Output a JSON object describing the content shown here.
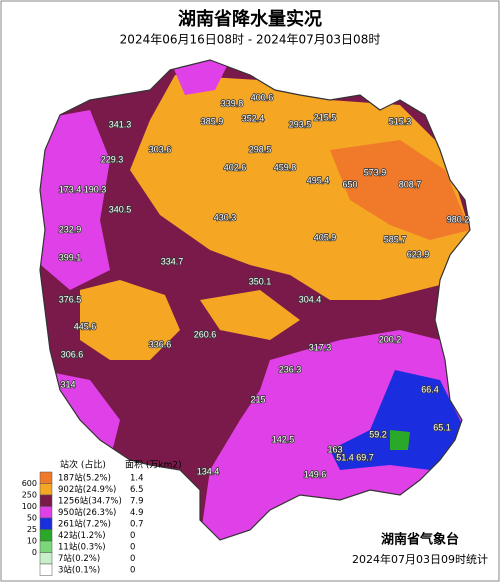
{
  "title": "湖南省降水量实况",
  "subtitle": "2024年06月16日08时 - 2024年07月03日08时",
  "legend": {
    "header_count": "站次 (占比)",
    "header_area": "面积 (万km2)",
    "scale": [
      "600",
      "250",
      "100",
      "50",
      "25",
      "10",
      "0"
    ],
    "items": [
      {
        "color": "#f07a2a",
        "label": "187站(5.2%)",
        "area": 1.4
      },
      {
        "color": "#f5a623",
        "label": "902站(24.9%)",
        "area": 6.5
      },
      {
        "color": "#7a1a4a",
        "label": "1256站(34.7%)",
        "area": 7.9
      },
      {
        "color": "#e040e8",
        "label": "950站(26.3%)",
        "area": 4.9
      },
      {
        "color": "#1a2ee0",
        "label": "261站(7.2%)",
        "area": 0.7
      },
      {
        "color": "#2aa82a",
        "label": "42站(1.2%)",
        "area": 0
      },
      {
        "color": "#7ad87a",
        "label": "11站(0.3%)",
        "area": 0
      },
      {
        "color": "#c8f0c8",
        "label": "7站(0.2%)",
        "area": 0
      },
      {
        "color": "#ffffff",
        "label": "3站(0.1%)",
        "area": 0
      }
    ]
  },
  "stations": [
    341.3,
    303.6,
    229.3,
    400.6,
    339.8,
    385.9,
    352.4,
    298.5,
    293.5,
    215.5,
    515.3,
    173.4,
    190.3,
    340.5,
    402.6,
    459.8,
    495.4,
    650,
    573.9,
    808.7,
    430.3,
    405.9,
    585.7,
    623.9,
    980.2,
    232.9,
    399.1,
    376.5,
    445.6,
    306.6,
    314,
    334.7,
    350.1,
    304.4,
    260.6,
    336.6,
    317.3,
    236.3,
    200.2,
    215,
    163,
    142.5,
    134.4,
    149.6,
    66.4,
    65.1,
    51.4,
    69.7,
    59.2
  ],
  "footer": {
    "agency": "湖南省气象台",
    "stat_time": "2024年07月03日09时统计"
  }
}
